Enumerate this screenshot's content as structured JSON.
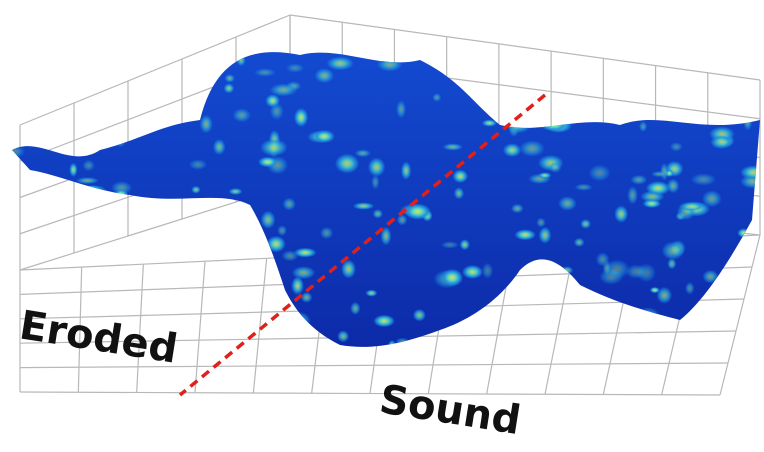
{
  "labels": {
    "left": "Eroded",
    "right": "Sound"
  }
}
